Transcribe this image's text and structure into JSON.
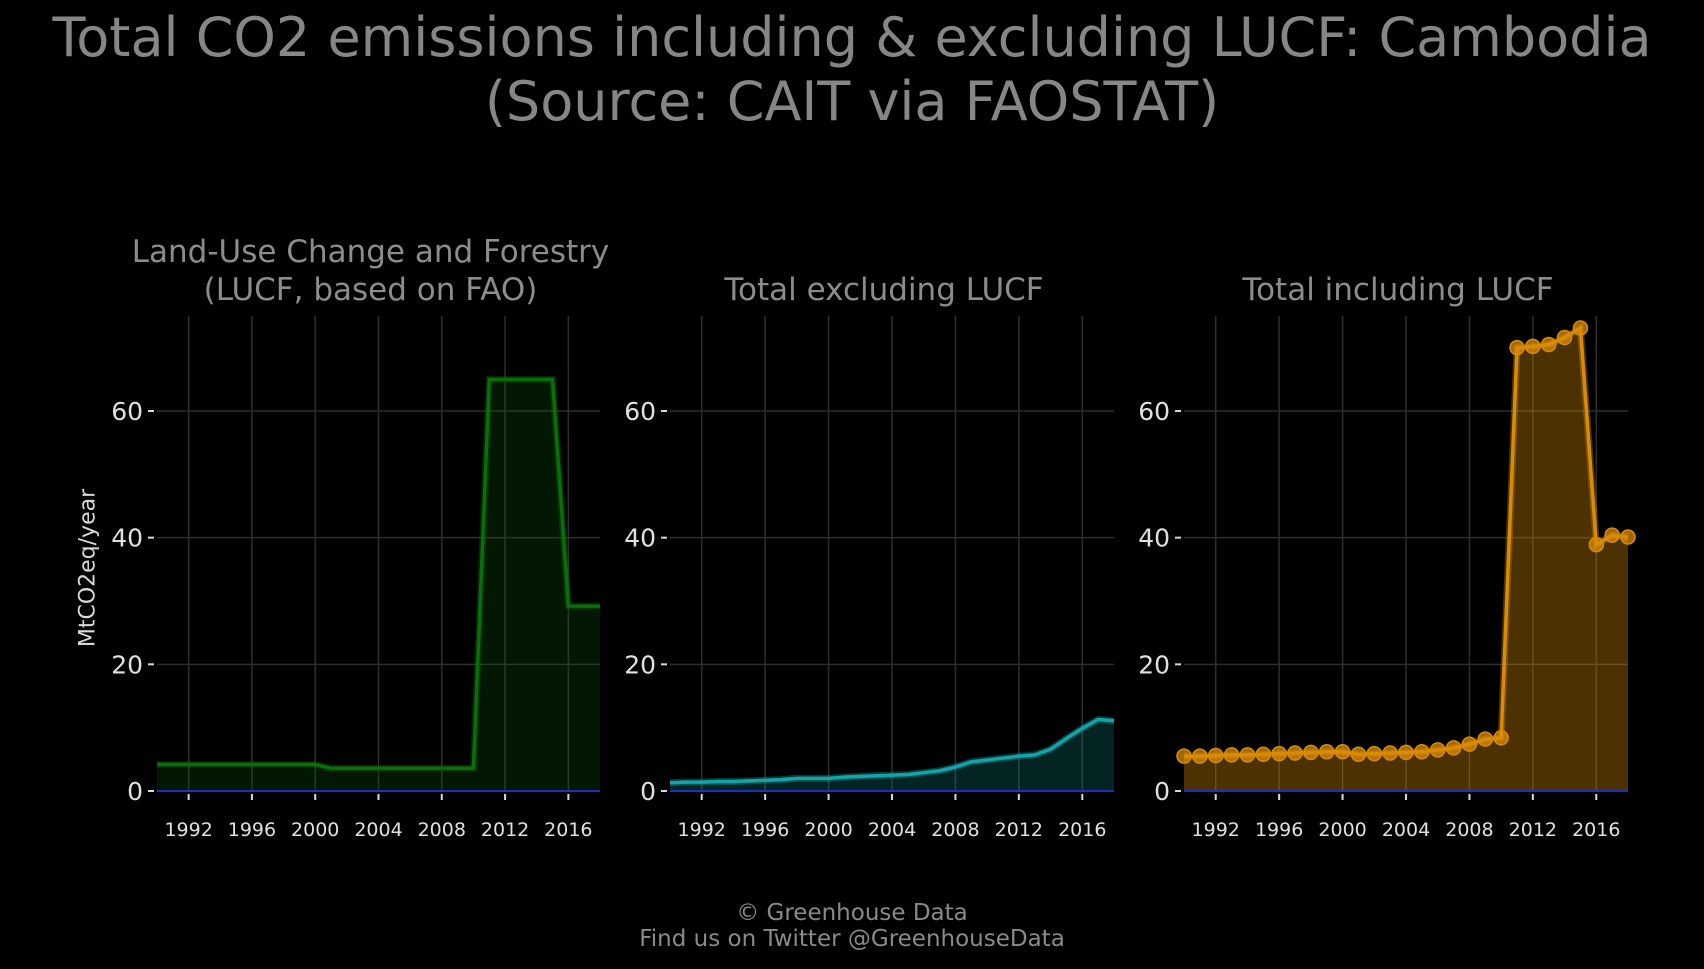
{
  "title": {
    "line1": "Total CO2 emissions including & excluding LUCF: Cambodia",
    "line2": "(Source: CAIT via FAOSTAT)"
  },
  "ylabel": "MtCO2eq/year",
  "footer": {
    "line1": "© Greenhouse Data",
    "line2": "Find us on Twitter @GreenhouseData"
  },
  "colors": {
    "background": "#000000",
    "grid": "#2e2e2e",
    "zero_line": "#1f2fbf",
    "lucf": "#0a6e0a",
    "excl": "#14a3a6",
    "incl": "#d98b06"
  },
  "chart_data": [
    {
      "type": "area",
      "title": "Land-Use Change and Forestry\n(LUCF, based on FAO)",
      "xlim": [
        1990,
        2018
      ],
      "ylim": [
        0,
        75
      ],
      "xticks": [
        1992,
        1996,
        2000,
        2004,
        2008,
        2012,
        2016
      ],
      "yticks": [
        0,
        20,
        40,
        60
      ],
      "markers": false,
      "x": [
        1990,
        1991,
        1992,
        1993,
        1994,
        1995,
        1996,
        1997,
        1998,
        1999,
        2000,
        2001,
        2002,
        2003,
        2004,
        2005,
        2006,
        2007,
        2008,
        2009,
        2010,
        2011,
        2012,
        2013,
        2014,
        2015,
        2016,
        2017,
        2018
      ],
      "values": [
        4.2,
        4.2,
        4.2,
        4.2,
        4.2,
        4.2,
        4.2,
        4.2,
        4.2,
        4.2,
        4.2,
        3.6,
        3.6,
        3.6,
        3.6,
        3.6,
        3.6,
        3.6,
        3.6,
        3.6,
        3.6,
        65,
        65,
        65,
        65,
        65,
        29.2,
        29.2,
        29.2
      ]
    },
    {
      "type": "area",
      "title": "Total excluding LUCF",
      "xlim": [
        1990,
        2018
      ],
      "ylim": [
        0,
        75
      ],
      "xticks": [
        1992,
        1996,
        2000,
        2004,
        2008,
        2012,
        2016
      ],
      "yticks": [
        0,
        20,
        40,
        60
      ],
      "markers": false,
      "x": [
        1990,
        1991,
        1992,
        1993,
        1994,
        1995,
        1996,
        1997,
        1998,
        1999,
        2000,
        2001,
        2002,
        2003,
        2004,
        2005,
        2006,
        2007,
        2008,
        2009,
        2010,
        2011,
        2012,
        2013,
        2014,
        2015,
        2016,
        2017,
        2018
      ],
      "values": [
        1.3,
        1.4,
        1.4,
        1.5,
        1.5,
        1.6,
        1.7,
        1.8,
        2.0,
        2.0,
        2.0,
        2.2,
        2.3,
        2.4,
        2.5,
        2.6,
        2.9,
        3.2,
        3.8,
        4.6,
        4.9,
        5.2,
        5.5,
        5.7,
        6.6,
        8.3,
        9.9,
        11.3,
        11.1
      ]
    },
    {
      "type": "area",
      "title": "Total including LUCF",
      "xlim": [
        1990,
        2018
      ],
      "ylim": [
        0,
        75
      ],
      "xticks": [
        1992,
        1996,
        2000,
        2004,
        2008,
        2012,
        2016
      ],
      "yticks": [
        0,
        20,
        40,
        60
      ],
      "markers": true,
      "x": [
        1990,
        1991,
        1992,
        1993,
        1994,
        1995,
        1996,
        1997,
        1998,
        1999,
        2000,
        2001,
        2002,
        2003,
        2004,
        2005,
        2006,
        2007,
        2008,
        2009,
        2010,
        2011,
        2012,
        2013,
        2014,
        2015,
        2016,
        2017,
        2018
      ],
      "values": [
        5.5,
        5.5,
        5.6,
        5.7,
        5.7,
        5.8,
        5.9,
        6.0,
        6.1,
        6.2,
        6.2,
        5.8,
        5.9,
        6.0,
        6.1,
        6.2,
        6.5,
        6.8,
        7.4,
        8.2,
        8.4,
        70.0,
        70.2,
        70.5,
        71.6,
        73.1,
        38.9,
        40.4,
        40.1
      ]
    }
  ]
}
